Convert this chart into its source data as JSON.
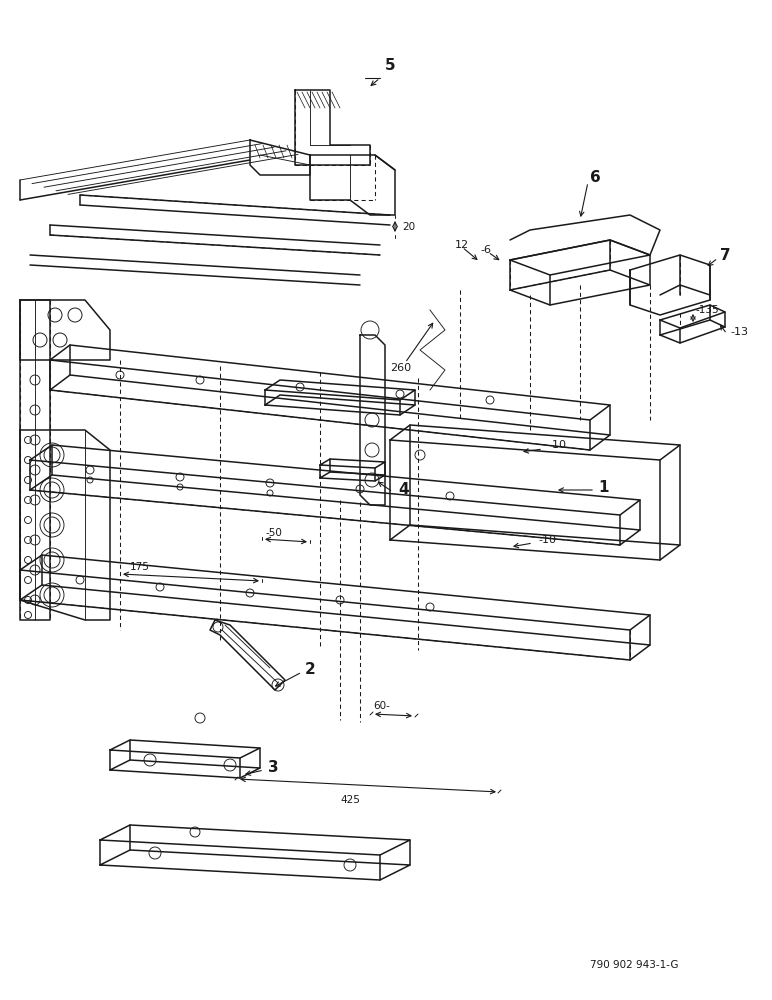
{
  "bg_color": "#ffffff",
  "line_color": "#1a1a1a",
  "fig_width": 7.72,
  "fig_height": 10.0,
  "dpi": 100,
  "footer_text": "790 902 943-1-G",
  "lw_main": 1.1,
  "lw_dash": 0.75,
  "lw_thin": 0.65
}
